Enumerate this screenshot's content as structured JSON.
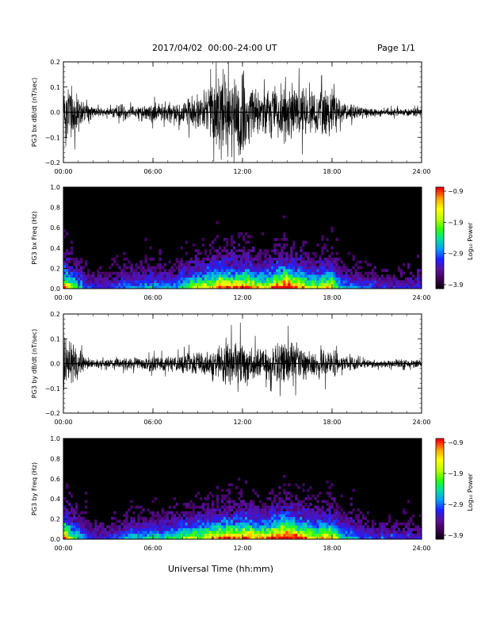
{
  "header": {
    "date_range": "2017/04/02  00:00–24:00 UT",
    "page": "Page 1/1"
  },
  "footer": {
    "xlabel": "Universal Time (hh:mm)"
  },
  "colors": {
    "trace": "#000000",
    "spectrogram_bg": "#000000",
    "colormap": [
      "#000000",
      "#3c0050",
      "#5a10a0",
      "#2020ff",
      "#00a0ff",
      "#00e0a0",
      "#30ff00",
      "#c0ff00",
      "#ffff00",
      "#ffa000",
      "#ff0000"
    ]
  },
  "chart_data": [
    {
      "type": "line",
      "ylabel": "PG3 bx dB/dt (nT/sec)",
      "x_ticks": [
        "00:00",
        "06:00",
        "12:00",
        "18:00",
        "24:00"
      ],
      "xlim": [
        0,
        24
      ],
      "ylim": [
        -0.2,
        0.2
      ],
      "y_ticks": [
        "0.2",
        "0.1",
        "0.0",
        "−0.1",
        "−0.2"
      ],
      "series": [
        {
          "x": [
            0,
            0.5,
            1,
            1.5,
            2,
            2.5,
            3,
            3.5,
            4,
            4.5,
            5,
            5.5,
            6,
            6.5,
            7,
            7.5,
            8,
            8.5,
            9,
            9.5,
            10,
            10.5,
            11,
            11.5,
            12,
            12.5,
            13,
            13.5,
            14,
            14.5,
            15,
            15.5,
            16,
            16.5,
            17,
            17.5,
            18,
            18.5,
            19,
            19.5,
            20,
            20.5,
            21,
            21.5,
            22,
            22.5,
            23,
            23.5,
            24
          ],
          "amplitude": [
            0.18,
            0.13,
            0.1,
            0.04,
            0.03,
            0.02,
            0.02,
            0.03,
            0.04,
            0.03,
            0.04,
            0.04,
            0.05,
            0.04,
            0.05,
            0.04,
            0.07,
            0.08,
            0.09,
            0.11,
            0.14,
            0.2,
            0.2,
            0.18,
            0.2,
            0.15,
            0.11,
            0.1,
            0.13,
            0.14,
            0.16,
            0.14,
            0.13,
            0.09,
            0.1,
            0.12,
            0.14,
            0.06,
            0.04,
            0.04,
            0.03,
            0.03,
            0.02,
            0.02,
            0.02,
            0.02,
            0.02,
            0.02,
            0.02
          ]
        }
      ]
    },
    {
      "type": "heatmap",
      "ylabel": "PG3 bx Freq (Hz)",
      "x_ticks": [
        "00:00",
        "06:00",
        "12:00",
        "18:00",
        "24:00"
      ],
      "xlim": [
        0,
        24
      ],
      "ylim": [
        0,
        1
      ],
      "y_ticks": [
        "1.0",
        "0.8",
        "0.6",
        "0.4",
        "0.2",
        "0.0"
      ],
      "colorbar": {
        "label": "Log₁₀ Power",
        "ticks": [
          "−0.9",
          "−1.9",
          "−2.9",
          "−3.9"
        ],
        "range": [
          -3.9,
          -0.9
        ]
      },
      "time_activity": [
        0.8,
        0.55,
        0.4,
        0.25,
        0.2,
        0.2,
        0.2,
        0.25,
        0.3,
        0.3,
        0.3,
        0.3,
        0.35,
        0.3,
        0.35,
        0.3,
        0.45,
        0.5,
        0.55,
        0.6,
        0.65,
        0.75,
        0.75,
        0.7,
        0.75,
        0.7,
        0.6,
        0.6,
        0.7,
        0.8,
        0.9,
        0.75,
        0.7,
        0.55,
        0.55,
        0.6,
        0.6,
        0.35,
        0.3,
        0.3,
        0.25,
        0.25,
        0.2,
        0.2,
        0.2,
        0.2,
        0.2,
        0.2,
        0.2
      ]
    },
    {
      "type": "line",
      "ylabel": "PG3 by dB/dt (nT/sec)",
      "x_ticks": [
        "00:00",
        "06:00",
        "12:00",
        "18:00",
        "24:00"
      ],
      "xlim": [
        0,
        24
      ],
      "ylim": [
        -0.2,
        0.2
      ],
      "y_ticks": [
        "0.2",
        "0.1",
        "0.0",
        "−0.1",
        "−0.2"
      ],
      "series": [
        {
          "x": [
            0,
            0.5,
            1,
            1.5,
            2,
            2.5,
            3,
            3.5,
            4,
            4.5,
            5,
            5.5,
            6,
            6.5,
            7,
            7.5,
            8,
            8.5,
            9,
            9.5,
            10,
            10.5,
            11,
            11.5,
            12,
            12.5,
            13,
            13.5,
            14,
            14.5,
            15,
            15.5,
            16,
            16.5,
            17,
            17.5,
            18,
            18.5,
            19,
            19.5,
            20,
            20.5,
            21,
            21.5,
            22,
            22.5,
            23,
            23.5,
            24
          ],
          "amplitude": [
            0.16,
            0.12,
            0.08,
            0.03,
            0.02,
            0.02,
            0.02,
            0.02,
            0.03,
            0.03,
            0.03,
            0.03,
            0.04,
            0.04,
            0.04,
            0.04,
            0.05,
            0.06,
            0.06,
            0.07,
            0.08,
            0.09,
            0.12,
            0.12,
            0.13,
            0.1,
            0.08,
            0.07,
            0.09,
            0.1,
            0.12,
            0.1,
            0.09,
            0.06,
            0.07,
            0.08,
            0.08,
            0.04,
            0.03,
            0.03,
            0.02,
            0.02,
            0.02,
            0.02,
            0.02,
            0.02,
            0.02,
            0.02,
            0.02
          ]
        }
      ]
    },
    {
      "type": "heatmap",
      "ylabel": "PG3 by Freq (Hz)",
      "x_ticks": [
        "00:00",
        "06:00",
        "12:00",
        "18:00",
        "24:00"
      ],
      "xlim": [
        0,
        24
      ],
      "ylim": [
        0,
        1
      ],
      "y_ticks": [
        "1.0",
        "0.8",
        "0.6",
        "0.4",
        "0.2",
        "0.0"
      ],
      "colorbar": {
        "label": "Log₁₀ Power",
        "ticks": [
          "−0.9",
          "−1.9",
          "−2.9",
          "−3.9"
        ],
        "range": [
          -3.9,
          -0.9
        ]
      },
      "time_activity": [
        0.8,
        0.55,
        0.4,
        0.25,
        0.2,
        0.2,
        0.2,
        0.25,
        0.3,
        0.35,
        0.35,
        0.35,
        0.4,
        0.35,
        0.45,
        0.4,
        0.5,
        0.55,
        0.55,
        0.6,
        0.65,
        0.7,
        0.75,
        0.7,
        0.75,
        0.7,
        0.65,
        0.65,
        0.75,
        0.85,
        0.9,
        0.8,
        0.75,
        0.6,
        0.6,
        0.65,
        0.65,
        0.4,
        0.35,
        0.3,
        0.25,
        0.25,
        0.2,
        0.2,
        0.2,
        0.2,
        0.2,
        0.2,
        0.2
      ]
    }
  ]
}
